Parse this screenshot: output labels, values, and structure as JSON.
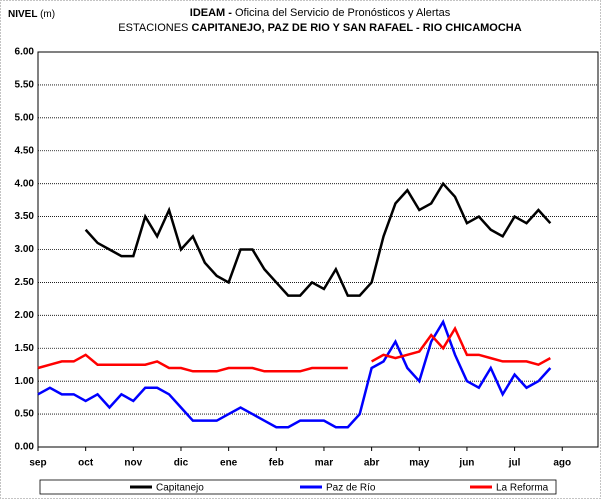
{
  "chart_data": {
    "type": "line",
    "ylabel": {
      "bold": "NIVEL",
      "unit": "(m)"
    },
    "title": [
      {
        "bold": "IDEAM - ",
        "normal": "Oficina del Servicio de Pronósticos y Alertas"
      },
      {
        "normal": "ESTACIONES ",
        "bold": "CAPITANEJO, PAZ DE RIO Y SAN RAFAEL -  RIO CHICAMOCHA"
      }
    ],
    "x": [
      0,
      0.25,
      0.5,
      0.75,
      1,
      1.25,
      1.5,
      1.75,
      2,
      2.25,
      2.5,
      2.75,
      3,
      3.25,
      3.5,
      3.75,
      4,
      4.25,
      4.5,
      4.75,
      5,
      5.25,
      5.5,
      5.75,
      6,
      6.25,
      6.5,
      6.75,
      7,
      7.25,
      7.5,
      7.75,
      8,
      8.25,
      8.5,
      8.75,
      9,
      9.25,
      9.5,
      9.75,
      10,
      10.25,
      10.5,
      10.75
    ],
    "series": [
      {
        "name": "Capitanejo",
        "color": "#000000",
        "values": [
          null,
          null,
          null,
          null,
          3.3,
          3.1,
          3.0,
          2.9,
          2.9,
          3.5,
          3.2,
          3.6,
          3.0,
          3.2,
          2.8,
          2.6,
          2.5,
          3.0,
          3.0,
          2.7,
          2.5,
          2.3,
          2.3,
          2.5,
          2.4,
          2.7,
          2.3,
          2.3,
          2.5,
          3.2,
          3.7,
          3.9,
          3.6,
          3.7,
          4.0,
          3.8,
          3.4,
          3.5,
          3.3,
          3.2,
          3.5,
          3.4,
          3.6,
          3.4
        ]
      },
      {
        "name": "Paz de Río",
        "color": "#0000ff",
        "values": [
          0.8,
          0.9,
          0.8,
          0.8,
          0.7,
          0.8,
          0.6,
          0.8,
          0.7,
          0.9,
          0.9,
          0.8,
          0.6,
          0.4,
          0.4,
          0.4,
          0.5,
          0.6,
          0.5,
          0.4,
          0.3,
          0.3,
          0.4,
          0.4,
          0.4,
          0.3,
          0.3,
          0.5,
          1.2,
          1.3,
          1.6,
          1.2,
          1.0,
          1.6,
          1.9,
          1.4,
          1.0,
          0.9,
          1.2,
          0.8,
          1.1,
          0.9,
          1.0,
          1.2
        ]
      },
      {
        "name": "La Reforma",
        "color": "#ff0000",
        "values": [
          1.2,
          1.25,
          1.3,
          1.3,
          1.4,
          1.25,
          1.25,
          1.25,
          1.25,
          1.25,
          1.3,
          1.2,
          1.2,
          1.15,
          1.15,
          1.15,
          1.2,
          1.2,
          1.2,
          1.15,
          1.15,
          1.15,
          1.15,
          1.2,
          1.2,
          1.2,
          1.2,
          null,
          1.3,
          1.4,
          1.35,
          1.4,
          1.45,
          1.7,
          1.5,
          1.8,
          1.4,
          1.4,
          1.35,
          1.3,
          1.3,
          1.3,
          1.25,
          1.35
        ]
      }
    ],
    "xlim": [
      0,
      11.75
    ],
    "xticks": [
      {
        "value": 0,
        "label": "sep"
      },
      {
        "value": 1,
        "label": "oct"
      },
      {
        "value": 2,
        "label": "nov"
      },
      {
        "value": 3,
        "label": "dic"
      },
      {
        "value": 4,
        "label": "ene"
      },
      {
        "value": 5,
        "label": "feb"
      },
      {
        "value": 6,
        "label": "mar"
      },
      {
        "value": 7,
        "label": "abr"
      },
      {
        "value": 8,
        "label": "may"
      },
      {
        "value": 9,
        "label": "jun"
      },
      {
        "value": 10,
        "label": "jul"
      },
      {
        "value": 11,
        "label": "ago"
      }
    ],
    "ylim": [
      0,
      6
    ],
    "yticks": [
      {
        "value": 0,
        "label": "0.00"
      },
      {
        "value": 0.5,
        "label": "0.50"
      },
      {
        "value": 1,
        "label": "1.00"
      },
      {
        "value": 1.5,
        "label": "1.50"
      },
      {
        "value": 2,
        "label": "2.00"
      },
      {
        "value": 2.5,
        "label": "2.50"
      },
      {
        "value": 3,
        "label": "3.00"
      },
      {
        "value": 3.5,
        "label": "3.50"
      },
      {
        "value": 4,
        "label": "4.00"
      },
      {
        "value": 4.5,
        "label": "4.50"
      },
      {
        "value": 5,
        "label": "5.00"
      },
      {
        "value": 5.5,
        "label": "5.50"
      },
      {
        "value": 6,
        "label": "6.00"
      }
    ],
    "grid": true,
    "legend": "bottom"
  }
}
